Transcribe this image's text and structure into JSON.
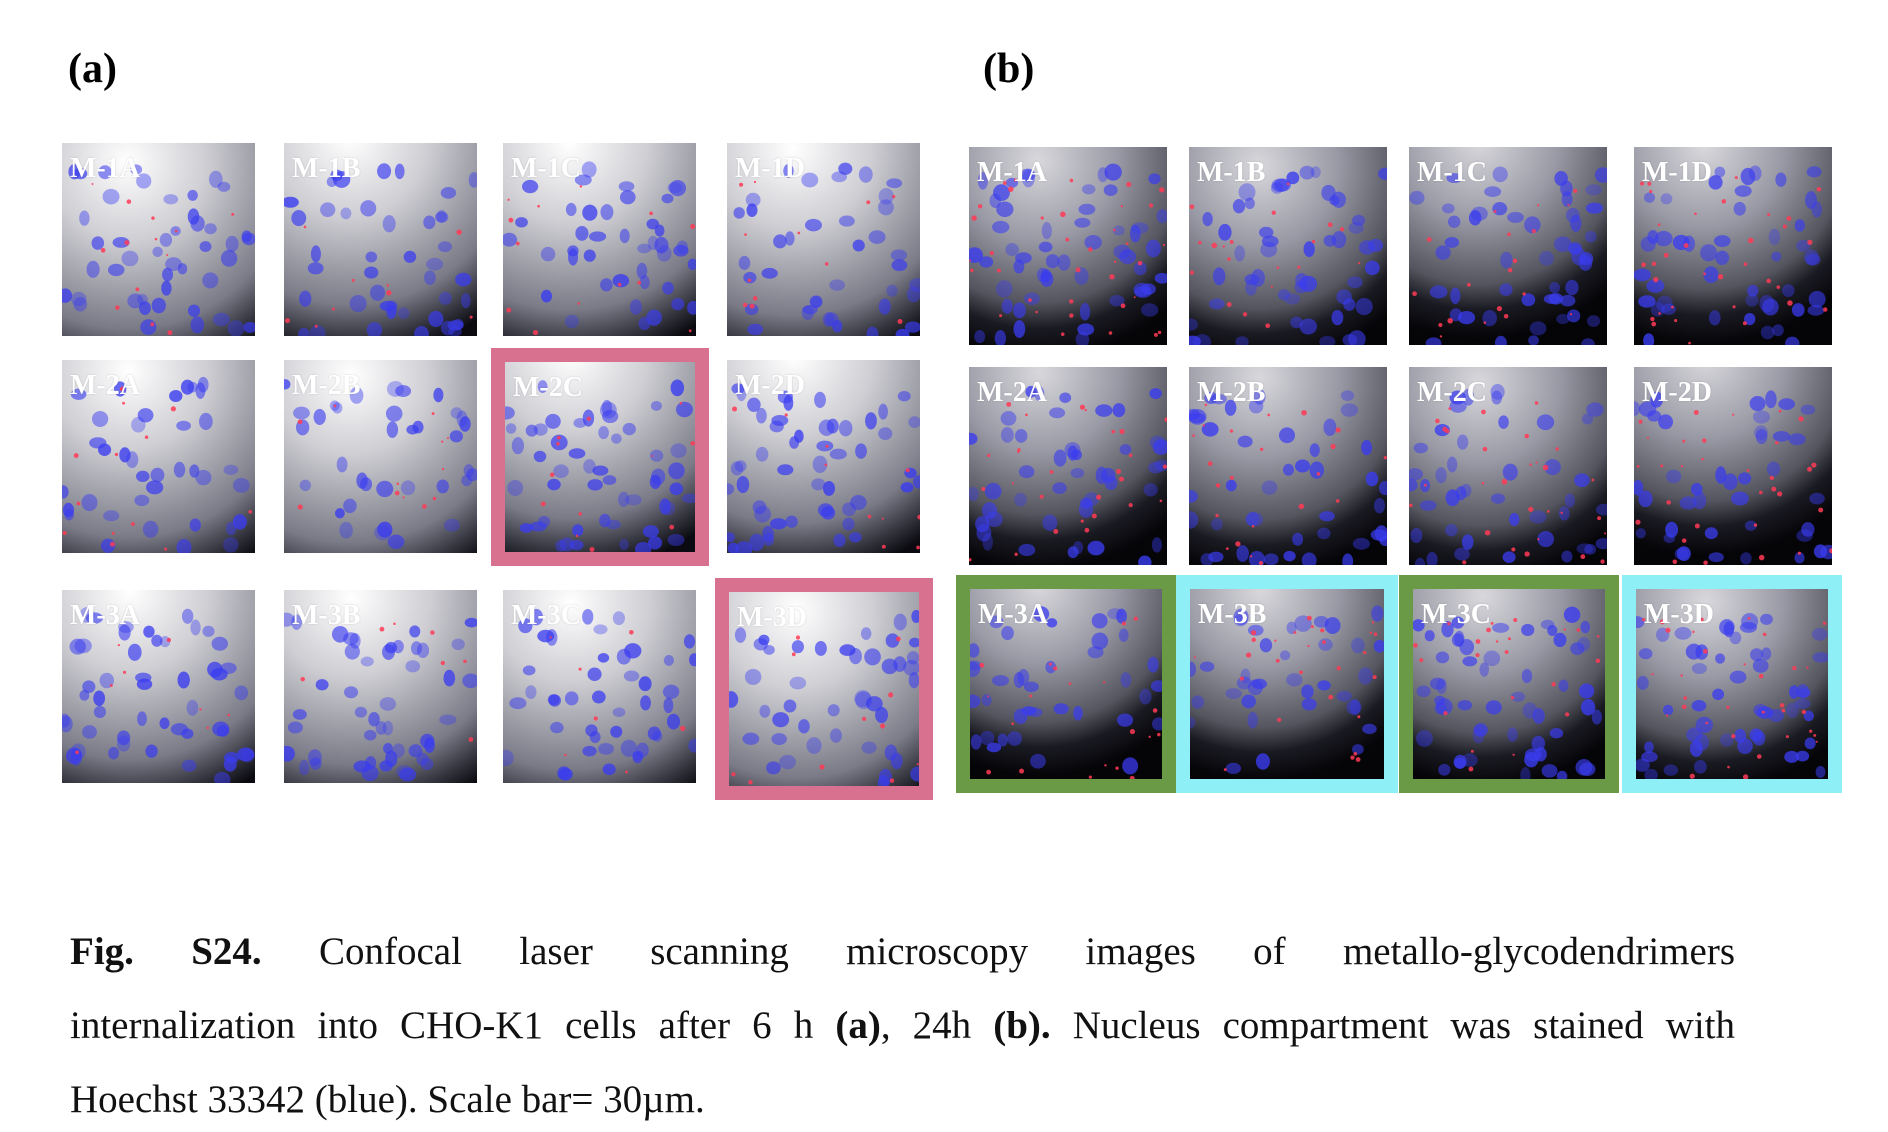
{
  "panels": [
    {
      "letter": "(a)",
      "tiles": [
        {
          "label": "M-1A"
        },
        {
          "label": "M-1B"
        },
        {
          "label": "M-1C"
        },
        {
          "label": "M-1D"
        },
        {
          "label": "M-2A"
        },
        {
          "label": "M-2B"
        },
        {
          "label": "M-2C",
          "frame": "#d8718f"
        },
        {
          "label": "M-2D"
        },
        {
          "label": "M-3A"
        },
        {
          "label": "M-3B"
        },
        {
          "label": "M-3C"
        },
        {
          "label": "M-3D",
          "frame": "#d8718f"
        }
      ]
    },
    {
      "letter": "(b)",
      "tiles": [
        {
          "label": "M-1A"
        },
        {
          "label": "M-1B"
        },
        {
          "label": "M-1C"
        },
        {
          "label": "M-1D"
        },
        {
          "label": "M-2A"
        },
        {
          "label": "M-2B"
        },
        {
          "label": "M-2C"
        },
        {
          "label": "M-2D"
        },
        {
          "label": "M-3A",
          "frame": "#6a9a45"
        },
        {
          "label": "M-3B",
          "frame": "#8ef0f6"
        },
        {
          "label": "M-3C",
          "frame": "#6a9a45"
        },
        {
          "label": "M-3D",
          "frame": "#8ef0f6"
        }
      ]
    }
  ],
  "colors": {
    "nucleus": "#3a3cf0",
    "particle": "#ff3a55",
    "frame_pink": "#d8718f",
    "frame_green": "#6a9a45",
    "frame_cyan": "#8ef0f6"
  },
  "caption": {
    "fig_label": "Fig.",
    "fig_number": "S24.",
    "line1_text": "Confocal laser scanning microscopy images of metallo-glycodendrimers",
    "line2_pre": "internalization into CHO-K1 cells after 6 h",
    "line2_a": "(a)",
    "line2_mid": ", 24h",
    "line2_b": "(b).",
    "line2_post": "Nucleus compartment was stained with",
    "line3": "Hoechst 33342 (blue). Scale bar= 30µm."
  }
}
